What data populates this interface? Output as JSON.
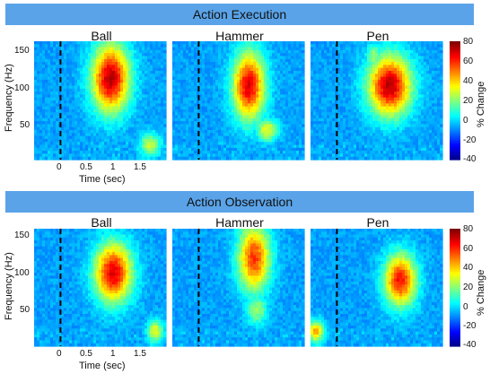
{
  "chart_data": [
    {
      "type": "heatmap",
      "title": "Action Execution",
      "panels": [
        "Ball",
        "Hammer",
        "Pen"
      ],
      "xlabel": "Time (sec)",
      "ylabel": "Frequency (Hz)",
      "xticks": [
        "0",
        "0.5",
        "1",
        "1.5"
      ],
      "yticks": [
        "50",
        "100",
        "150"
      ],
      "xlim": [
        -0.5,
        2.0
      ],
      "ylim": [
        0,
        160
      ],
      "event_marker_x": 0,
      "colorbar": {
        "label": "% Change",
        "ticks": [
          "80",
          "60",
          "40",
          "20",
          "0",
          "-20",
          "-40"
        ],
        "range": [
          -40,
          80
        ]
      },
      "hotspots": [
        [
          {
            "t": 0.95,
            "f": 110,
            "w": 0.35,
            "h": 45,
            "v": 80
          },
          {
            "t": 1.7,
            "f": 20,
            "w": 0.2,
            "h": 15,
            "v": 35
          }
        ],
        [
          {
            "t": 0.95,
            "f": 100,
            "w": 0.3,
            "h": 45,
            "v": 75
          },
          {
            "t": 1.3,
            "f": 40,
            "w": 0.2,
            "h": 15,
            "v": 40
          }
        ],
        [
          {
            "t": 1.0,
            "f": 100,
            "w": 0.4,
            "h": 40,
            "v": 80
          },
          {
            "t": 0.7,
            "f": 140,
            "w": 0.15,
            "h": 15,
            "v": 30
          }
        ]
      ]
    },
    {
      "type": "heatmap",
      "title": "Action Observation",
      "panels": [
        "Ball",
        "Hammer",
        "Pen"
      ],
      "xlabel": "Time (sec)",
      "ylabel": "Frequency (Hz)",
      "xticks": [
        "0",
        "0.5",
        "1",
        "1.5"
      ],
      "yticks": [
        "50",
        "100",
        "150"
      ],
      "xlim": [
        -0.5,
        2.0
      ],
      "ylim": [
        0,
        160
      ],
      "event_marker_x": 0,
      "colorbar": {
        "label": "% Change",
        "ticks": [
          "80",
          "60",
          "40",
          "20",
          "0",
          "-20",
          "-40"
        ],
        "range": [
          -40,
          80
        ]
      },
      "hotspots": [
        [
          {
            "t": 1.0,
            "f": 100,
            "w": 0.35,
            "h": 40,
            "v": 75
          },
          {
            "t": 1.8,
            "f": 20,
            "w": 0.15,
            "h": 15,
            "v": 40
          }
        ],
        [
          {
            "t": 1.05,
            "f": 120,
            "w": 0.3,
            "h": 45,
            "v": 65
          },
          {
            "t": 1.1,
            "f": 50,
            "w": 0.2,
            "h": 20,
            "v": 30
          }
        ],
        [
          {
            "t": 1.2,
            "f": 90,
            "w": 0.3,
            "h": 35,
            "v": 70
          },
          {
            "t": -0.4,
            "f": 20,
            "w": 0.15,
            "h": 15,
            "v": 50
          }
        ]
      ]
    }
  ]
}
